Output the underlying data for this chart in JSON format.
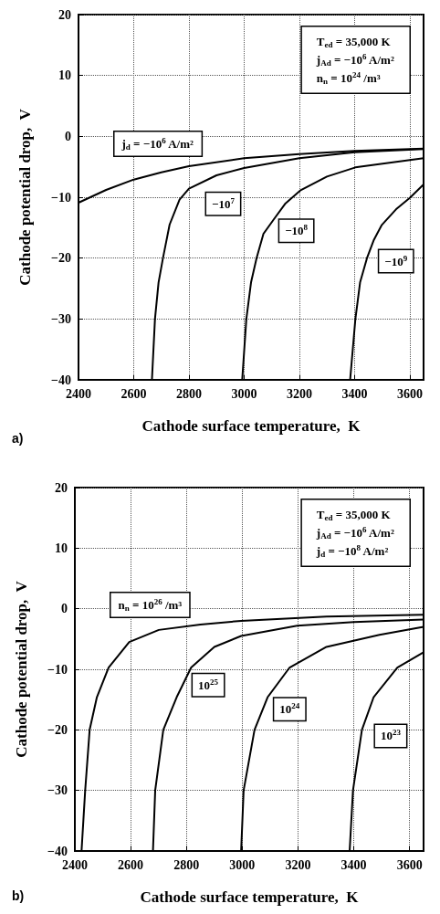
{
  "chart_data": [
    {
      "type": "line",
      "title": "a)",
      "xlabel": "Cathode surface temperature,  K",
      "ylabel": "Cathode potential drop,  V",
      "xlim": [
        2400,
        3650
      ],
      "ylim": [
        -40,
        20
      ],
      "xticks": [
        2400,
        2600,
        2800,
        3000,
        3200,
        3400,
        3600
      ],
      "yticks": [
        -40,
        -30,
        -20,
        -10,
        0,
        10,
        20
      ],
      "grid": true,
      "marker": "none",
      "line_style": "solid",
      "series": [
        {
          "color": "#000000",
          "x": [
            2400,
            2500,
            2600,
            2700,
            2800,
            3000,
            3200,
            3400,
            3650
          ],
          "values": [
            -10.9,
            -8.8,
            -7.1,
            -5.9,
            -4.9,
            -3.6,
            -2.9,
            -2.4,
            -2.0
          ]
        },
        {
          "color": "#000000",
          "x": [
            2666,
            2677,
            2690,
            2706,
            2730,
            2766,
            2800,
            2900,
            3000,
            3200,
            3400,
            3650
          ],
          "values": [
            -40,
            -30,
            -24,
            -20,
            -14.5,
            -10.4,
            -8.6,
            -6.4,
            -5.2,
            -3.6,
            -2.6,
            -2.1
          ]
        },
        {
          "color": "#000000",
          "x": [
            2993,
            3008,
            3025,
            3045,
            3070,
            3108,
            3150,
            3203,
            3300,
            3403,
            3650
          ],
          "values": [
            -40,
            -30,
            -24,
            -20,
            -16,
            -13.6,
            -11,
            -8.9,
            -6.6,
            -5.1,
            -3.6
          ]
        },
        {
          "color": "#000000",
          "x": [
            3384,
            3403,
            3420,
            3445,
            3470,
            3498,
            3550,
            3600,
            3650
          ],
          "values": [
            -40,
            -30,
            -24,
            -20,
            -17,
            -14.6,
            -12,
            -10.1,
            -7.9
          ]
        }
      ],
      "annotations": [
        "T$_{ed}$ = 35,000 K\nj$_{Ad}$ = −10$^{6}$ A/m²\nn$_{n}$ = 10$^{24}$ /m³",
        "j$_{d}$ = −10$^{6}$ A/m²",
        {
          "text": "−10$^{7}$",
          "x": 2924,
          "y": -11.1
        },
        {
          "text": "−10$^{8}$",
          "x": 3189,
          "y": -15.5
        },
        {
          "text": "−10$^{9}$",
          "x": 3550,
          "y": -20.5
        }
      ]
    },
    {
      "type": "line",
      "title": "b)",
      "xlabel": "Cathode surface temperature,  K",
      "ylabel": "Cathode potential drop,  V",
      "xlim": [
        2400,
        3650
      ],
      "ylim": [
        -40,
        20
      ],
      "xticks": [
        2400,
        2600,
        2800,
        3000,
        3200,
        3400,
        3600
      ],
      "yticks": [
        -40,
        -30,
        -20,
        -10,
        0,
        10,
        20
      ],
      "grid": true,
      "marker": "none",
      "line_style": "solid",
      "series": [
        {
          "color": "#000000",
          "x": [
            2424,
            2437,
            2453,
            2479,
            2521,
            2595,
            2701,
            2850,
            2996,
            3302,
            3650
          ],
          "values": [
            -40,
            -30,
            -20,
            -14.6,
            -9.7,
            -5.5,
            -3.5,
            -2.6,
            -2.0,
            -1.3,
            -1.0
          ]
        },
        {
          "color": "#000000",
          "x": [
            2680,
            2688,
            2717,
            2765,
            2817,
            2900,
            2996,
            3197,
            3400,
            3650
          ],
          "values": [
            -40,
            -30,
            -20,
            -14.6,
            -9.7,
            -6.3,
            -4.5,
            -2.8,
            -2.2,
            -1.8
          ]
        },
        {
          "color": "#000000",
          "x": [
            2996,
            3005,
            3044,
            3091,
            3170,
            3302,
            3492,
            3650
          ],
          "values": [
            -40,
            -30,
            -20,
            -14.6,
            -9.7,
            -6.3,
            -4.3,
            -3.0
          ]
        },
        {
          "color": "#000000",
          "x": [
            3385,
            3397,
            3429,
            3471,
            3556,
            3650
          ],
          "values": [
            -40,
            -30,
            -20,
            -14.6,
            -9.7,
            -7.2
          ]
        }
      ],
      "annotations": [
        "T$_{ed}$ = 35,000 K\nj$_{Ad}$ = −10$^{6}$ A/m²\nj$_{d}$ = −10$^{8}$ A/m²",
        "n$_{n}$ = 10$^{26}$ /m³",
        {
          "text": "10$^{25}$",
          "x": 2878,
          "y": -12.6
        },
        {
          "text": "10$^{24}$",
          "x": 3170,
          "y": -16.6
        },
        {
          "text": "10$^{23}$",
          "x": 3532,
          "y": -21
        }
      ]
    }
  ]
}
